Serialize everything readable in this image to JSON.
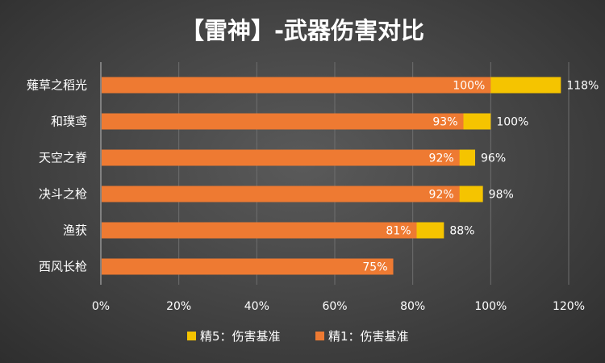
{
  "chart_data": {
    "type": "bar",
    "orientation": "horizontal",
    "title": "【雷神】-武器伤害对比",
    "categories": [
      "薙草之稻光",
      "和璞鸢",
      "天空之脊",
      "决斗之枪",
      "渔获",
      "西风长枪"
    ],
    "series": [
      {
        "name": "精1：伤害基准",
        "color": "#ee7a32",
        "values": [
          100,
          93,
          92,
          92,
          81,
          75
        ],
        "labels": [
          "100%",
          "93%",
          "92%",
          "92%",
          "81%",
          "75%"
        ]
      },
      {
        "name": "精5：伤害基准",
        "color": "#f5c400",
        "values": [
          118,
          100,
          96,
          98,
          88,
          null
        ],
        "labels": [
          "118%",
          "100%",
          "96%",
          "98%",
          "88%",
          ""
        ]
      }
    ],
    "xlim": [
      0,
      120
    ],
    "xticks": [
      "0%",
      "20%",
      "40%",
      "60%",
      "80%",
      "100%",
      "120%"
    ],
    "grid": true,
    "legend_position": "bottom"
  }
}
